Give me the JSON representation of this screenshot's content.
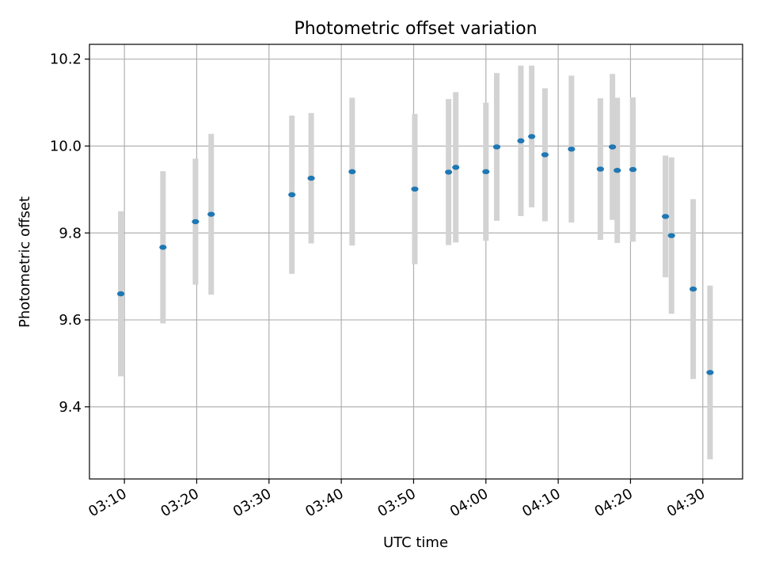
{
  "chart_data": {
    "type": "scatter",
    "title": "Photometric offset variation",
    "xlabel": "UTC time",
    "ylabel": "Photometric offset",
    "x_ticks": [
      "03:10",
      "03:20",
      "03:30",
      "03:40",
      "03:50",
      "04:00",
      "04:10",
      "04:20",
      "04:30"
    ],
    "y_ticks": [
      "9.4",
      "9.6",
      "9.8",
      "10.0",
      "10.2"
    ],
    "xlim": [
      "03:05:10",
      "04:35:30"
    ],
    "ylim": [
      9.234,
      10.234
    ],
    "grid": true,
    "colors": {
      "marker": "#1f77b4",
      "errorbar": "#d3d3d3"
    },
    "series": [
      {
        "points": [
          {
            "x": "03:09:30",
            "y": 9.66,
            "err": 0.19
          },
          {
            "x": "03:15:20",
            "y": 9.767,
            "err": 0.175
          },
          {
            "x": "03:19:50",
            "y": 9.826,
            "err": 0.145
          },
          {
            "x": "03:22:00",
            "y": 9.843,
            "err": 0.185
          },
          {
            "x": "03:33:10",
            "y": 9.888,
            "err": 0.182
          },
          {
            "x": "03:35:50",
            "y": 9.926,
            "err": 0.15
          },
          {
            "x": "03:41:30",
            "y": 9.941,
            "err": 0.17
          },
          {
            "x": "03:50:10",
            "y": 9.901,
            "err": 0.173
          },
          {
            "x": "03:54:50",
            "y": 9.94,
            "err": 0.168
          },
          {
            "x": "03:55:50",
            "y": 9.951,
            "err": 0.173
          },
          {
            "x": "04:00:00",
            "y": 9.941,
            "err": 0.159
          },
          {
            "x": "04:01:30",
            "y": 9.998,
            "err": 0.17
          },
          {
            "x": "04:04:50",
            "y": 10.012,
            "err": 0.173
          },
          {
            "x": "04:06:20",
            "y": 10.022,
            "err": 0.163
          },
          {
            "x": "04:08:10",
            "y": 9.98,
            "err": 0.153
          },
          {
            "x": "04:11:50",
            "y": 9.993,
            "err": 0.169
          },
          {
            "x": "04:15:50",
            "y": 9.947,
            "err": 0.163
          },
          {
            "x": "04:17:30",
            "y": 9.998,
            "err": 0.168
          },
          {
            "x": "04:18:10",
            "y": 9.944,
            "err": 0.167
          },
          {
            "x": "04:20:20",
            "y": 9.946,
            "err": 0.166
          },
          {
            "x": "04:24:50",
            "y": 9.838,
            "err": 0.14
          },
          {
            "x": "04:25:40",
            "y": 9.794,
            "err": 0.18
          },
          {
            "x": "04:28:40",
            "y": 9.671,
            "err": 0.207
          },
          {
            "x": "04:31:00",
            "y": 9.479,
            "err": 0.2
          }
        ]
      }
    ]
  }
}
